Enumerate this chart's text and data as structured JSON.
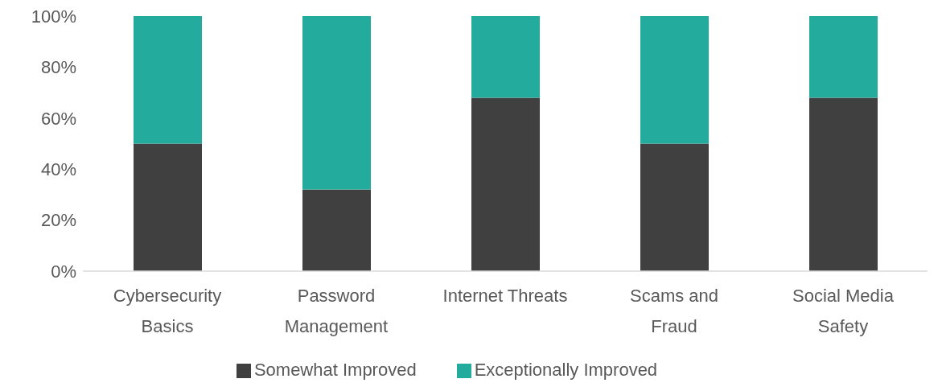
{
  "chart_data": {
    "type": "bar",
    "stacked": true,
    "categories": [
      "Cybersecurity Basics",
      "Password Management",
      "Internet Threats",
      "Scams and Fraud",
      "Social Media Safety"
    ],
    "series": [
      {
        "name": "Somewhat Improved",
        "color": "#404040",
        "values": [
          50,
          32,
          68,
          50,
          68
        ]
      },
      {
        "name": "Exceptionally Improved",
        "color": "#23ab9d",
        "values": [
          50,
          68,
          32,
          50,
          32
        ]
      }
    ],
    "ylim": [
      0,
      100
    ],
    "yticks": [
      {
        "value": 0,
        "label": "0%"
      },
      {
        "value": 20,
        "label": "20%"
      },
      {
        "value": 40,
        "label": "40%"
      },
      {
        "value": 60,
        "label": "60%"
      },
      {
        "value": 80,
        "label": "80%"
      },
      {
        "value": 100,
        "label": "100%"
      }
    ],
    "grid": false,
    "legend": "bottom"
  }
}
